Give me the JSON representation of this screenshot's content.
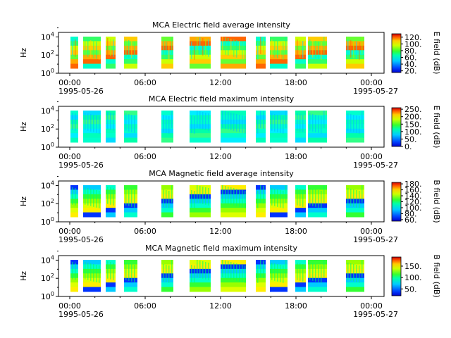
{
  "chart_data": [
    {
      "type": "heatmap",
      "title": "MCA  Electric field average intensity",
      "ylabel": "Hz",
      "xlabel": "",
      "x_ticks": [
        "00:00",
        "06:00",
        "12:00",
        "18:00",
        "00:00"
      ],
      "x_dates": [
        "1995-05-26",
        "1995-05-27"
      ],
      "y_ticks": [
        "10^0",
        "10^2",
        "10^4"
      ],
      "ylim_log10": [
        0,
        4.5
      ],
      "colorbar": {
        "label": "E field (dB)",
        "ticks": [
          "120.",
          "100.",
          "80.",
          "60.",
          "40.",
          "20."
        ],
        "range": [
          15,
          130
        ]
      }
    },
    {
      "type": "heatmap",
      "title": "MCA  Electric field maximum intensity",
      "ylabel": "Hz",
      "xlabel": "",
      "x_ticks": [
        "00:00",
        "06:00",
        "12:00",
        "18:00",
        "00:00"
      ],
      "x_dates": [
        "1995-05-26",
        "1995-05-27"
      ],
      "y_ticks": [
        "10^0",
        "10^2",
        "10^4"
      ],
      "ylim_log10": [
        0,
        4.5
      ],
      "colorbar": {
        "label": "E field (dB)",
        "ticks": [
          "250.",
          "200.",
          "150.",
          "100.",
          "50.",
          "0."
        ],
        "range": [
          0,
          260
        ]
      }
    },
    {
      "type": "heatmap",
      "title": "MCA  Magnetic field average intensity",
      "ylabel": "Hz",
      "xlabel": "",
      "x_ticks": [
        "00:00",
        "06:00",
        "12:00",
        "18:00",
        "00:00"
      ],
      "x_dates": [
        "1995-05-26",
        "1995-05-27"
      ],
      "y_ticks": [
        "10^0",
        "10^2",
        "10^4"
      ],
      "ylim_log10": [
        0,
        4.5
      ],
      "colorbar": {
        "label": "B field (dB)",
        "ticks": [
          "180.",
          "160.",
          "140.",
          "120.",
          "100.",
          "80.",
          "60."
        ],
        "range": [
          55,
          185
        ]
      }
    },
    {
      "type": "heatmap",
      "title": "MCA  Magnetic field maximum intensity",
      "ylabel": "Hz",
      "xlabel": "",
      "x_ticks": [
        "00:00",
        "06:00",
        "12:00",
        "18:00",
        "00:00"
      ],
      "x_dates": [
        "1995-05-26",
        "1995-05-27"
      ],
      "y_ticks": [
        "10^0",
        "10^2",
        "10^4"
      ],
      "ylim_log10": [
        0,
        4.5
      ],
      "colorbar": {
        "label": "B field (dB)",
        "ticks": [
          "150.",
          "100.",
          "50."
        ],
        "range": [
          20,
          190
        ]
      }
    }
  ]
}
